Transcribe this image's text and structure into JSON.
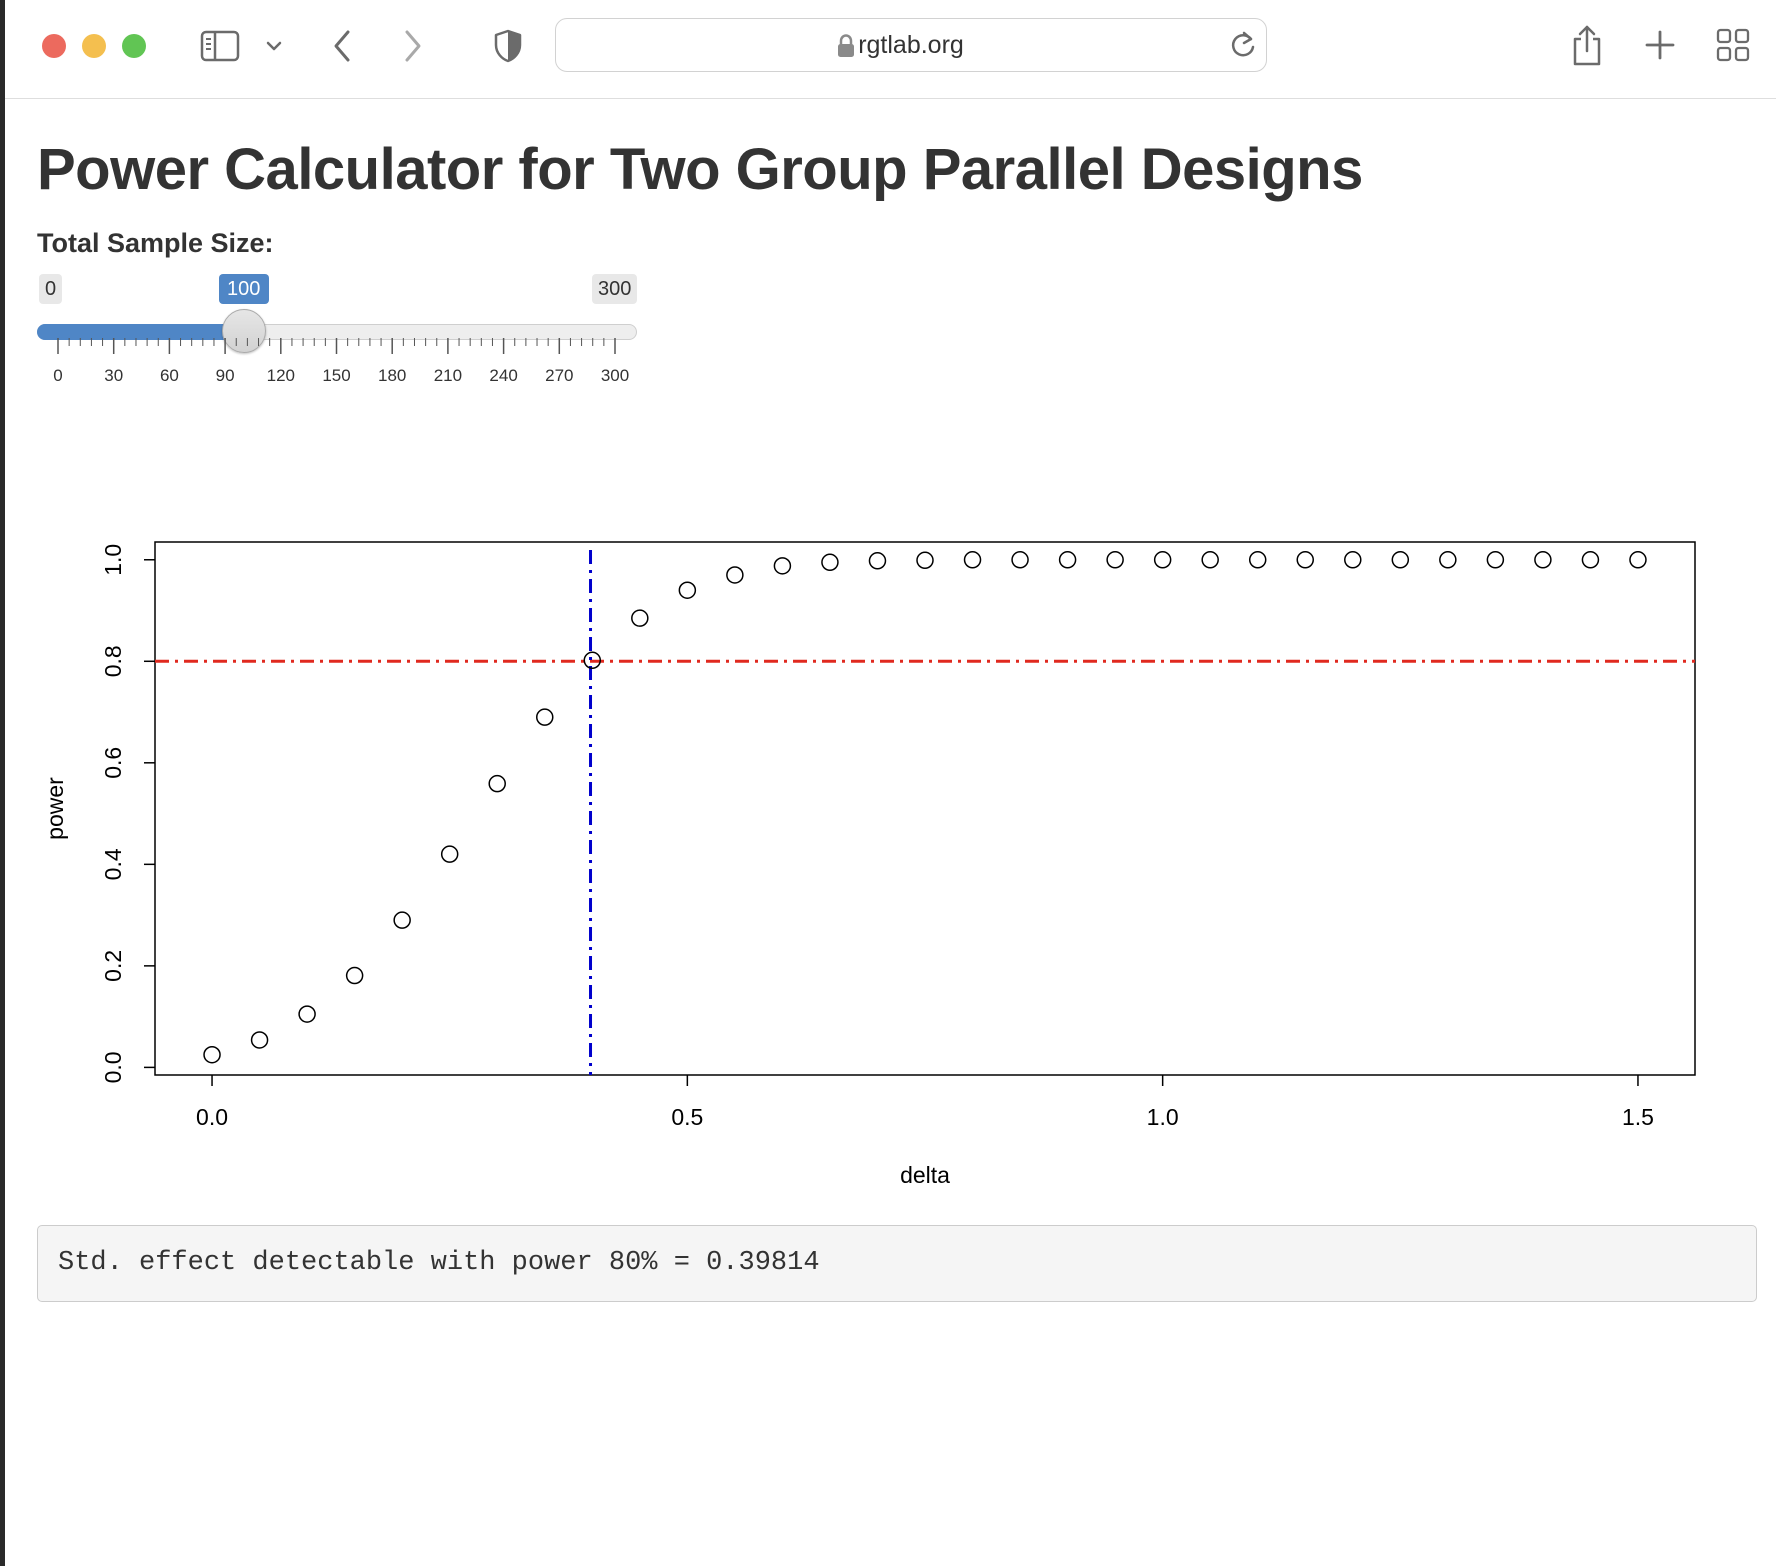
{
  "browser": {
    "url": "rgtlab.org",
    "colors": {
      "close": "#ec6a5e",
      "minimize": "#f4bf4f",
      "zoom": "#61c554"
    }
  },
  "page": {
    "title": "Power Calculator for Two Group Parallel Designs"
  },
  "slider": {
    "label": "Total Sample Size:",
    "min": 0,
    "max": 300,
    "value": 100,
    "min_label": "0",
    "max_label": "300",
    "value_label": "100",
    "step_labels": [
      "0",
      "30",
      "60",
      "90",
      "120",
      "150",
      "180",
      "210",
      "240",
      "270",
      "300"
    ],
    "accent_color": "#4f86c6"
  },
  "chart_data": {
    "type": "scatter",
    "xlabel": "delta",
    "ylabel": "power",
    "xlim": [
      -0.06,
      1.56
    ],
    "ylim": [
      -0.015,
      1.035
    ],
    "x_ticks": [
      "0.0",
      "0.5",
      "1.0",
      "1.5"
    ],
    "y_ticks": [
      "0.0",
      "0.2",
      "0.4",
      "0.6",
      "0.8",
      "1.0"
    ],
    "x": [
      0.0,
      0.05,
      0.1,
      0.15,
      0.2,
      0.25,
      0.3,
      0.35,
      0.4,
      0.45,
      0.5,
      0.55,
      0.6,
      0.65,
      0.7,
      0.75,
      0.8,
      0.85,
      0.9,
      0.95,
      1.0,
      1.05,
      1.1,
      1.15,
      1.2,
      1.25,
      1.3,
      1.35,
      1.4,
      1.45,
      1.5
    ],
    "y": [
      0.025,
      0.054,
      0.105,
      0.181,
      0.29,
      0.42,
      0.559,
      0.69,
      0.802,
      0.885,
      0.94,
      0.97,
      0.988,
      0.995,
      0.998,
      0.999,
      1.0,
      1.0,
      1.0,
      1.0,
      1.0,
      1.0,
      1.0,
      1.0,
      1.0,
      1.0,
      1.0,
      1.0,
      1.0,
      1.0,
      1.0
    ],
    "hline": {
      "y": 0.8,
      "color": "#e0291f",
      "style": "dotdash"
    },
    "vline": {
      "x": 0.39814,
      "color": "#0000cc",
      "style": "dotdash"
    },
    "grid": false
  },
  "result": {
    "text": "Std. effect detectable with power 80% = 0.39814"
  }
}
